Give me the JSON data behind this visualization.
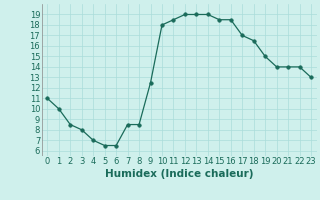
{
  "x": [
    0,
    1,
    2,
    3,
    4,
    5,
    6,
    7,
    8,
    9,
    10,
    11,
    12,
    13,
    14,
    15,
    16,
    17,
    18,
    19,
    20,
    21,
    22,
    23
  ],
  "y": [
    11,
    10,
    8.5,
    8,
    7,
    6.5,
    6.5,
    8.5,
    8.5,
    12.5,
    18,
    18.5,
    19,
    19,
    19,
    18.5,
    18.5,
    17,
    16.5,
    15,
    14,
    14,
    14,
    13
  ],
  "line_color": "#1a6b5a",
  "marker": "o",
  "marker_size": 2.5,
  "bg_color": "#cff0ec",
  "grid_color": "#aaddda",
  "xlabel": "Humidex (Indice chaleur)",
  "xlabel_fontsize": 7.5,
  "xlim": [
    -0.5,
    23.5
  ],
  "ylim": [
    5.5,
    20
  ],
  "yticks": [
    6,
    7,
    8,
    9,
    10,
    11,
    12,
    13,
    14,
    15,
    16,
    17,
    18,
    19
  ],
  "xticks": [
    0,
    1,
    2,
    3,
    4,
    5,
    6,
    7,
    8,
    9,
    10,
    11,
    12,
    13,
    14,
    15,
    16,
    17,
    18,
    19,
    20,
    21,
    22,
    23
  ],
  "tick_fontsize": 6,
  "label_color": "#1a6b5a"
}
